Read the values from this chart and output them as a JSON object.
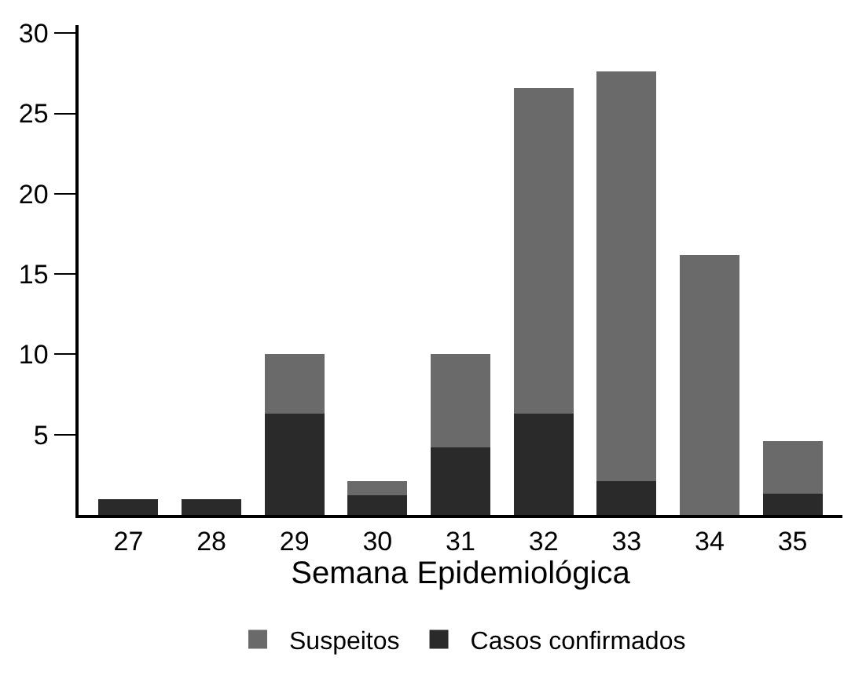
{
  "chart_data": {
    "type": "bar",
    "stacked": true,
    "xlabel": "Semana Epidemiológica",
    "categories": [
      "27",
      "28",
      "29",
      "30",
      "31",
      "32",
      "33",
      "34",
      "35"
    ],
    "series": [
      {
        "name": "Casos confirmados",
        "color": "#2a2a2a",
        "values": [
          1,
          1,
          6.3,
          1.2,
          4.2,
          6.3,
          2.1,
          0,
          1.3
        ]
      },
      {
        "name": "Suspeitos",
        "color": "#6a6a6a",
        "values": [
          0,
          0,
          3.7,
          0.9,
          5.8,
          20.3,
          25.5,
          16.2,
          3.3
        ]
      }
    ],
    "ylim": [
      0,
      30.5
    ],
    "yticks": [
      5,
      10,
      15,
      20,
      25,
      30
    ],
    "legend": "bottom"
  }
}
